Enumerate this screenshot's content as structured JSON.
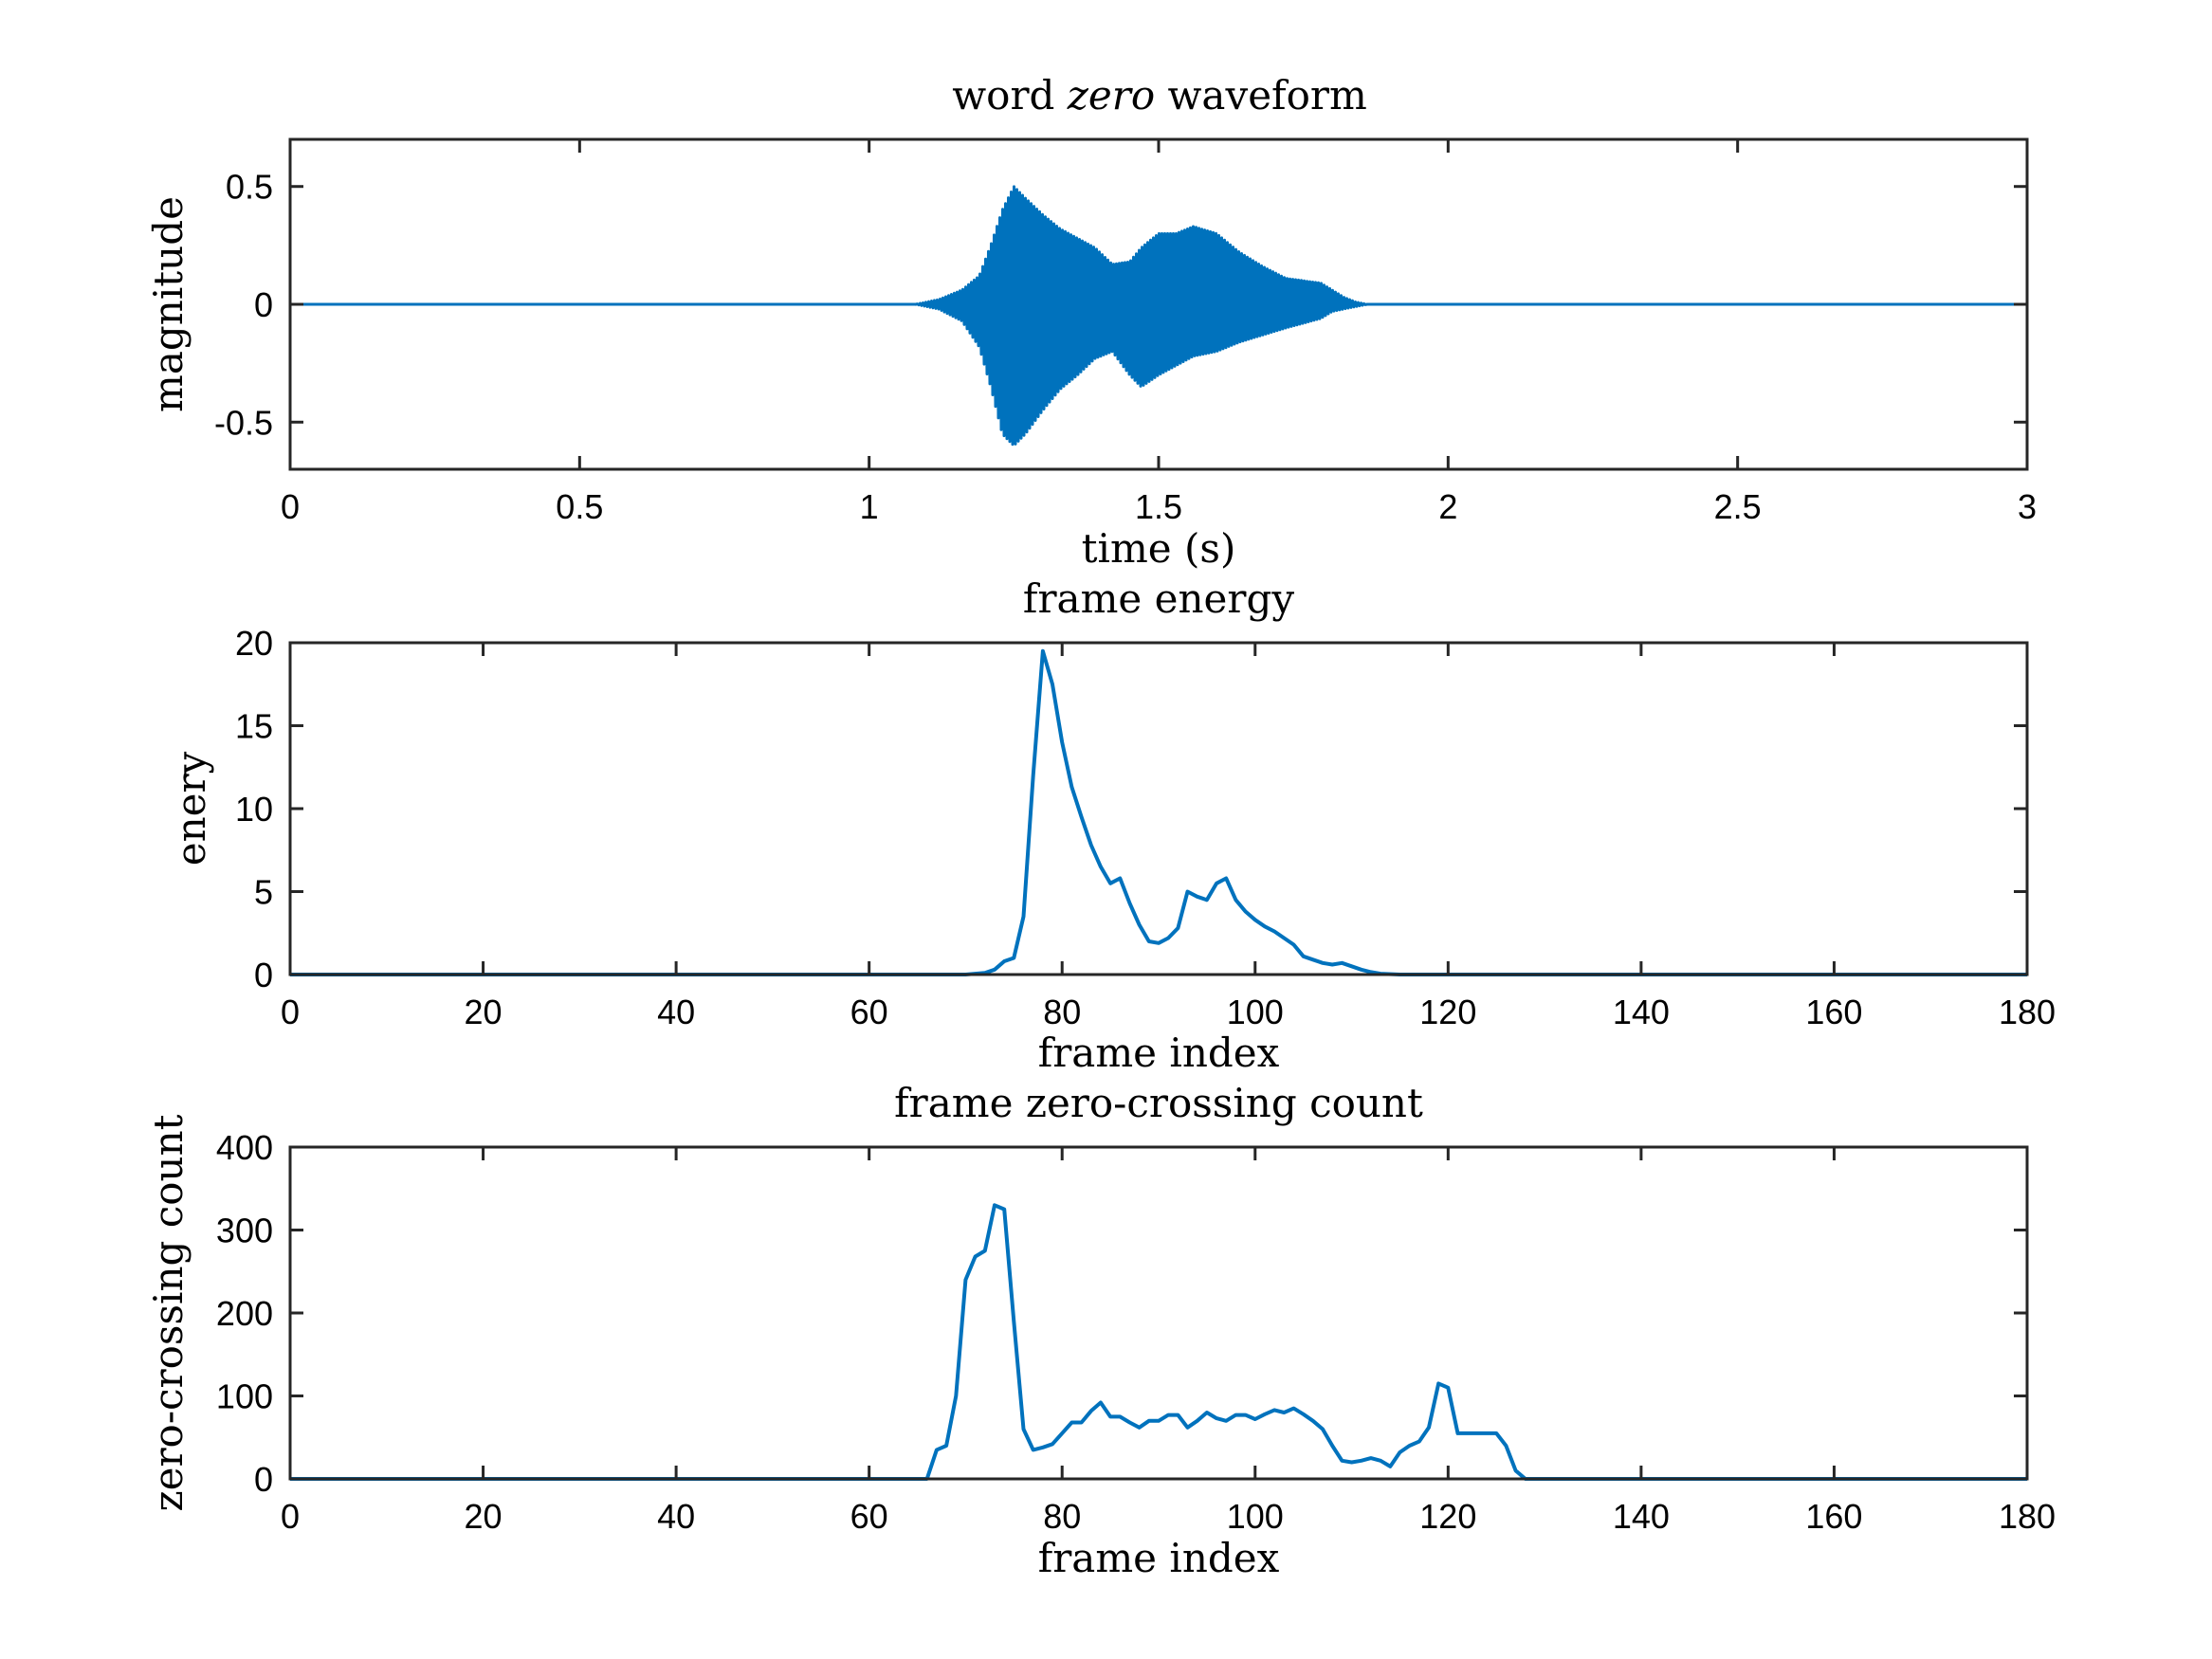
{
  "figure": {
    "background": "#ffffff"
  },
  "colors": {
    "series": "#0072BD",
    "axes": "#262626",
    "text": "#000000"
  },
  "chart_data": [
    {
      "type": "line",
      "title_parts": [
        {
          "text": "word ",
          "italic": false
        },
        {
          "text": "zero",
          "italic": true
        },
        {
          "text": " waveform",
          "italic": false
        }
      ],
      "xlabel": "time (s)",
      "ylabel": "magnitude",
      "xlim": [
        0,
        3
      ],
      "ylim": [
        -0.7,
        0.7
      ],
      "xticks": [
        0,
        0.5,
        1,
        1.5,
        2,
        2.5,
        3
      ],
      "xtick_labels": [
        "0",
        "0.5",
        "1",
        "1.5",
        "2",
        "2.5",
        "3"
      ],
      "yticks": [
        0.5,
        0,
        -0.5
      ],
      "ytick_labels": [
        "0.5",
        "0",
        "-0.5"
      ],
      "grid": false,
      "envelope": {
        "t": [
          0,
          1.08,
          1.12,
          1.16,
          1.19,
          1.21,
          1.23,
          1.25,
          1.27,
          1.3,
          1.33,
          1.36,
          1.39,
          1.42,
          1.45,
          1.47,
          1.5,
          1.53,
          1.56,
          1.6,
          1.64,
          1.68,
          1.72,
          1.75,
          1.78,
          1.8,
          1.82,
          1.84,
          1.86,
          3
        ],
        "upper": [
          0,
          0,
          0.02,
          0.06,
          0.12,
          0.25,
          0.4,
          0.5,
          0.45,
          0.38,
          0.32,
          0.28,
          0.24,
          0.17,
          0.18,
          0.24,
          0.3,
          0.3,
          0.33,
          0.3,
          0.22,
          0.16,
          0.11,
          0.1,
          0.09,
          0.06,
          0.03,
          0.01,
          0,
          0
        ],
        "lower": [
          0,
          0,
          -0.02,
          -0.07,
          -0.18,
          -0.35,
          -0.55,
          -0.6,
          -0.55,
          -0.45,
          -0.36,
          -0.3,
          -0.23,
          -0.2,
          -0.3,
          -0.35,
          -0.3,
          -0.26,
          -0.22,
          -0.2,
          -0.16,
          -0.13,
          -0.1,
          -0.08,
          -0.06,
          -0.03,
          -0.02,
          -0.01,
          0,
          0
        ]
      }
    },
    {
      "type": "line",
      "title": "frame energy",
      "xlabel": "frame index",
      "ylabel": "enery",
      "xlim": [
        0,
        180
      ],
      "ylim": [
        0,
        20
      ],
      "xticks": [
        0,
        20,
        40,
        60,
        80,
        100,
        120,
        140,
        160,
        180
      ],
      "xtick_labels": [
        "0",
        "20",
        "40",
        "60",
        "80",
        "100",
        "120",
        "140",
        "160",
        "180"
      ],
      "yticks": [
        0,
        5,
        10,
        15,
        20
      ],
      "ytick_labels": [
        "0",
        "5",
        "10",
        "15",
        "20"
      ],
      "grid": false,
      "x": [
        0,
        70,
        72,
        73,
        74,
        75,
        76,
        77,
        78,
        79,
        80,
        81,
        82,
        83,
        84,
        85,
        86,
        87,
        88,
        89,
        90,
        91,
        92,
        93,
        94,
        95,
        96,
        97,
        98,
        99,
        100,
        101,
        102,
        103,
        104,
        105,
        106,
        107,
        108,
        109,
        110,
        111,
        112,
        113,
        115,
        180
      ],
      "y": [
        0,
        0,
        0.1,
        0.3,
        0.8,
        1.0,
        3.5,
        12.0,
        19.5,
        17.5,
        14.0,
        11.3,
        9.5,
        7.8,
        6.5,
        5.5,
        5.8,
        4.3,
        3.0,
        2.0,
        1.9,
        2.2,
        2.8,
        5.0,
        4.7,
        4.5,
        5.5,
        5.8,
        4.5,
        3.8,
        3.3,
        2.9,
        2.6,
        2.2,
        1.8,
        1.1,
        0.9,
        0.7,
        0.6,
        0.7,
        0.5,
        0.3,
        0.15,
        0.05,
        0,
        0
      ]
    },
    {
      "type": "line",
      "title": "frame zero-crossing count",
      "xlabel": "frame index",
      "ylabel": "zero-crossing count",
      "xlim": [
        0,
        180
      ],
      "ylim": [
        0,
        400
      ],
      "xticks": [
        0,
        20,
        40,
        60,
        80,
        100,
        120,
        140,
        160,
        180
      ],
      "xtick_labels": [
        "0",
        "20",
        "40",
        "60",
        "80",
        "100",
        "120",
        "140",
        "160",
        "180"
      ],
      "yticks": [
        0,
        100,
        200,
        300,
        400
      ],
      "ytick_labels": [
        "0",
        "100",
        "200",
        "300",
        "400"
      ],
      "grid": false,
      "x": [
        0,
        66,
        67,
        68,
        69,
        70,
        71,
        72,
        73,
        74,
        75,
        76,
        77,
        78,
        79,
        80,
        81,
        82,
        83,
        84,
        85,
        86,
        87,
        88,
        89,
        90,
        91,
        92,
        93,
        94,
        95,
        96,
        97,
        98,
        99,
        100,
        101,
        102,
        103,
        104,
        105,
        106,
        107,
        108,
        109,
        110,
        111,
        112,
        113,
        114,
        115,
        116,
        117,
        118,
        119,
        120,
        121,
        122,
        123,
        124,
        125,
        126,
        127,
        128,
        180
      ],
      "y": [
        0,
        0,
        35,
        40,
        100,
        240,
        268,
        275,
        330,
        325,
        190,
        60,
        35,
        38,
        42,
        55,
        68,
        68,
        82,
        92,
        75,
        75,
        68,
        62,
        70,
        70,
        77,
        77,
        62,
        70,
        80,
        73,
        70,
        77,
        77,
        72,
        78,
        83,
        80,
        85,
        78,
        70,
        60,
        40,
        22,
        20,
        22,
        25,
        22,
        15,
        32,
        40,
        45,
        62,
        115,
        110,
        55,
        55,
        55,
        55,
        55,
        40,
        10,
        0,
        0
      ]
    }
  ]
}
